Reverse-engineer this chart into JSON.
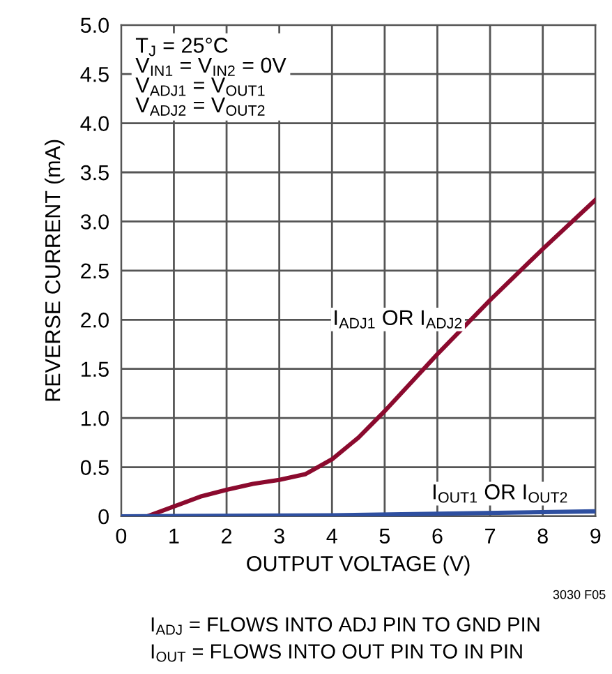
{
  "chart_data": {
    "type": "line",
    "xlabel": "OUTPUT VOLTAGE (V)",
    "ylabel": "REVERSE CURRENT (mA)",
    "xlim": [
      0,
      9
    ],
    "xticks": [
      0,
      1,
      2,
      3,
      4,
      5,
      6,
      7,
      8,
      9
    ],
    "ylim": [
      0,
      5
    ],
    "yticks": [
      0,
      0.5,
      {
        "value": 1,
        "label": "1.0"
      },
      1.5,
      {
        "value": 2,
        "label": "2.0"
      },
      2.5,
      {
        "value": 3,
        "label": "3.0"
      },
      3.5,
      {
        "value": 4,
        "label": "4.0"
      },
      4.5,
      {
        "value": 5,
        "label": "5.0"
      }
    ],
    "grid": true,
    "legend": false,
    "marker": "none",
    "line_style": "solid",
    "series": [
      {
        "name": "I$_{ADJ1}$ OR I$_{ADJ2}$",
        "color": "#8b0a2e",
        "x": [
          0.5,
          1,
          1.5,
          2,
          2.5,
          3,
          3.5,
          4,
          4.5,
          5,
          6,
          7,
          8,
          9
        ],
        "values": [
          0,
          0.1,
          0.2,
          0.27,
          0.33,
          0.37,
          0.43,
          0.58,
          0.8,
          1.07,
          1.65,
          2.2,
          2.72,
          3.22
        ]
      },
      {
        "name": "I$_{OUT1}$ OR I$_{OUT2}$",
        "color": "#2e4fa0",
        "x": [
          0,
          4,
          9
        ],
        "values": [
          0,
          0.01,
          0.05
        ]
      }
    ],
    "annotations": [
      "T$_{J}$ = 25°C",
      "V$_{IN1}$ = V$_{IN2}$ = 0V",
      "V$_{ADJ1}$ = V$_{OUT1}$",
      "V$_{ADJ2}$ = V$_{OUT2}$",
      "3030 F05",
      "I$_{ADJ}$ = FLOWS INTO ADJ PIN TO GND PIN",
      "I$_{OUT}$ = FLOWS INTO OUT PIN TO IN PIN"
    ]
  }
}
